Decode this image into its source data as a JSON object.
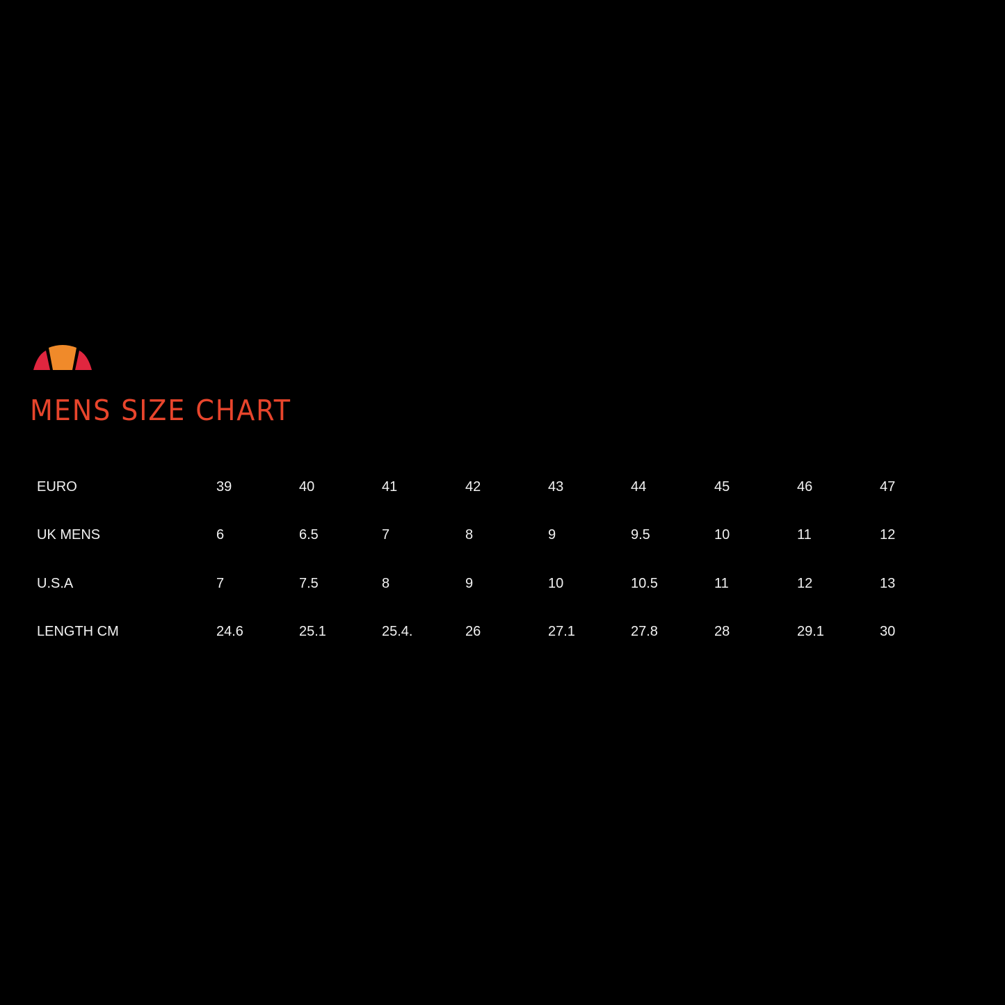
{
  "brand": {
    "logo": "ellesse half-ball logo",
    "colors": {
      "orange": "#f08a2a",
      "red": "#e0263f"
    }
  },
  "title": "MENS SIZE CHART",
  "title_color": "#e8452c",
  "table": {
    "rows": [
      {
        "label": "EURO",
        "values": [
          "39",
          "40",
          "41",
          "42",
          "43",
          "44",
          "45",
          "46",
          "47"
        ]
      },
      {
        "label": "UK MENS",
        "values": [
          "6",
          "6.5",
          "7",
          "8",
          "9",
          "9.5",
          "10",
          "11",
          "12"
        ]
      },
      {
        "label": "U.S.A",
        "values": [
          "7",
          "7.5",
          "8",
          "9",
          "10",
          "10.5",
          "11",
          "12",
          "13"
        ]
      },
      {
        "label": "LENGTH CM",
        "values": [
          "24.6",
          "25.1",
          "25.4.",
          "26",
          "27.1",
          "27.8",
          "28",
          "29.1",
          "30"
        ]
      }
    ]
  }
}
